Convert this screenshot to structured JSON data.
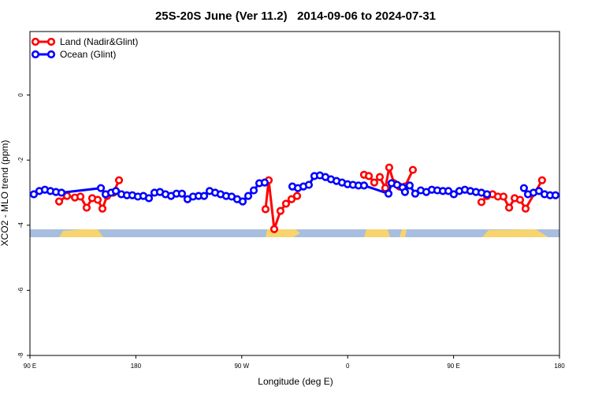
{
  "chart_data": {
    "type": "line",
    "title": "25S-20S June (Ver 11.2)   2014-09-06 to 2024-07-31",
    "x_label": "Longitude (deg E)",
    "y_label": "XCO2 - MLO trend (ppm)",
    "xlim": [
      90,
      540
    ],
    "ylim": [
      -8,
      1.95
    ],
    "xticks": [
      {
        "value": 90,
        "label": "90 E"
      },
      {
        "value": 180,
        "label": "180"
      },
      {
        "value": 270,
        "label": "90 W"
      },
      {
        "value": 360,
        "label": "0"
      },
      {
        "value": 450,
        "label": "90 E"
      },
      {
        "value": 540,
        "label": "180"
      }
    ],
    "yticks": [
      0,
      -2,
      -4,
      -6,
      -8
    ],
    "legend": "top-left",
    "series": [
      {
        "name": "Land (Nadir&Glint)",
        "color": "#ff0000",
        "x": [
          114.8,
          121.5,
          128.2,
          132.9,
          138.2,
          142.9,
          147.6,
          151.6,
          155.6,
          161,
          165.7,
          250,
          290.2,
          292.9,
          297.6,
          302.9,
          307.6,
          312.3,
          317,
          390,
          373.9,
          378,
          382.6,
          387.3,
          392,
          395.3,
          399.4,
          404,
          408.7,
          415.4,
          470,
          473.7,
          478.4,
          483.1,
          487.7,
          492.4,
          497.2,
          501.9,
          506.5,
          511.2,
          525.2
        ],
        "values": [
          -3.27,
          -3.1,
          -3.15,
          -3.12,
          -3.46,
          -3.17,
          -3.22,
          -3.49,
          -3.1,
          -3.0,
          -2.62,
          null,
          -3.51,
          -2.62,
          -4.12,
          -3.56,
          -3.34,
          -3.2,
          -3.1,
          null,
          -2.45,
          -2.49,
          -2.69,
          -2.52,
          -2.86,
          -2.23,
          -2.71,
          -2.81,
          -2.81,
          -2.3,
          null,
          -3.29,
          -3.1,
          -3.05,
          -3.12,
          -3.12,
          -3.46,
          -3.17,
          -3.22,
          -3.49,
          -2.62
        ]
      },
      {
        "name": "Ocean (Glint)",
        "color": "#0000ff",
        "x": [
          93.3,
          98,
          102.7,
          107.4,
          112.1,
          116.8,
          150.3,
          154.3,
          159,
          163,
          167.7,
          172.4,
          177,
          181.7,
          186.4,
          191.1,
          195.8,
          200.5,
          205.2,
          209.9,
          214.5,
          219.2,
          223.9,
          228.6,
          233.3,
          238,
          242.7,
          247.4,
          252,
          256.7,
          261.4,
          266.1,
          270.8,
          275.5,
          280.2,
          284.9,
          289.5,
          300,
          313,
          317.7,
          322.4,
          327,
          331.7,
          336.4,
          341.1,
          345.8,
          350.5,
          355.2,
          359.9,
          364.5,
          369.2,
          373.9,
          394.7,
          397.3,
          402,
          406.7,
          408.7,
          412.7,
          417.4,
          422.1,
          426.8,
          431.5,
          436.2,
          440.9,
          445.6,
          450.2,
          454.9,
          459.6,
          464.3,
          469,
          473.7,
          478.4,
          490,
          509.8,
          513.2,
          517.9,
          522.6,
          527.3,
          532,
          536.6
        ],
        "values": [
          -3.05,
          -2.95,
          -2.91,
          -2.95,
          -2.98,
          -3.0,
          -2.86,
          -3.05,
          -3.0,
          -2.95,
          -3.05,
          -3.08,
          -3.08,
          -3.12,
          -3.1,
          -3.17,
          -3.0,
          -2.98,
          -3.05,
          -3.1,
          -3.03,
          -3.03,
          -3.2,
          -3.12,
          -3.1,
          -3.1,
          -2.95,
          -3.0,
          -3.05,
          -3.1,
          -3.12,
          -3.2,
          -3.27,
          -3.1,
          -2.93,
          -2.71,
          -2.69,
          null,
          -2.81,
          -2.86,
          -2.81,
          -2.76,
          -2.49,
          -2.47,
          -2.52,
          -2.59,
          -2.64,
          -2.69,
          -2.74,
          -2.76,
          -2.78,
          -2.78,
          -3.03,
          -2.71,
          -2.76,
          -2.84,
          -2.98,
          -2.78,
          -3.03,
          -2.93,
          -2.98,
          -2.91,
          -2.93,
          -2.95,
          -2.95,
          -3.05,
          -2.95,
          -2.91,
          -2.95,
          -2.98,
          -3.0,
          -3.05,
          null,
          -2.86,
          -3.05,
          -3.0,
          -2.95,
          -3.05,
          -3.08,
          -3.08
        ]
      }
    ]
  }
}
